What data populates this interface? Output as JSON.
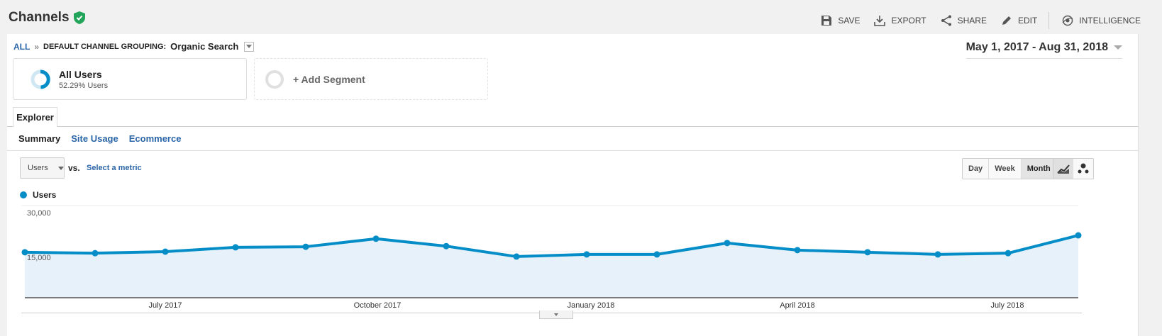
{
  "header": {
    "title": "Channels",
    "verified_icon": "shield-check-icon",
    "actions": [
      {
        "label": "SAVE",
        "icon": "save-icon"
      },
      {
        "label": "EXPORT",
        "icon": "download-icon"
      },
      {
        "label": "SHARE",
        "icon": "share-icon"
      },
      {
        "label": "EDIT",
        "icon": "pencil-icon"
      },
      {
        "label": "INTELLIGENCE",
        "icon": "intelligence-icon"
      }
    ]
  },
  "breadcrumb": {
    "root": "ALL",
    "separator": "»",
    "dimension": "DEFAULT CHANNEL GROUPING:",
    "value": "Organic Search"
  },
  "date_range": "May 1, 2017 - Aug 31, 2018",
  "segments": [
    {
      "name": "All Users",
      "subtitle": "52.29% Users"
    },
    {
      "name": "+ Add Segment"
    }
  ],
  "tabs": {
    "main": "Explorer",
    "sub": [
      "Summary",
      "Site Usage",
      "Ecommerce"
    ],
    "active_sub": "Summary"
  },
  "metric_controls": {
    "primary_metric": "Users",
    "vs_label": "vs.",
    "secondary_placeholder": "Select a metric",
    "periods": [
      "Day",
      "Week",
      "Month"
    ],
    "active_period": "Month",
    "chart_types": [
      "line-chart-icon",
      "motion-chart-icon"
    ]
  },
  "colors": {
    "accent": "#058dc7",
    "area_fill": "#e6f1f9",
    "link": "#2a65a8",
    "verified": "#22a55a"
  },
  "chart_data": {
    "type": "area",
    "title": "",
    "legend": [
      "Users"
    ],
    "x": [
      "May 2017",
      "Jun 2017",
      "Jul 2017",
      "Aug 2017",
      "Sep 2017",
      "Oct 2017",
      "Nov 2017",
      "Dec 2017",
      "Jan 2018",
      "Feb 2018",
      "Mar 2018",
      "Apr 2018",
      "May 2018",
      "Jun 2018",
      "Jul 2018",
      "Aug 2018"
    ],
    "series": [
      {
        "name": "Users",
        "values": [
          14800,
          14500,
          15000,
          16400,
          16600,
          19200,
          16800,
          13400,
          14100,
          14100,
          17800,
          15500,
          14800,
          14100,
          14500,
          20300
        ]
      }
    ],
    "xtick_labels": [
      "July 2017",
      "October 2017",
      "January 2018",
      "April 2018",
      "July 2018"
    ],
    "ytick_labels": [
      "30,000",
      "15,000"
    ],
    "yticks": [
      30000,
      15000
    ],
    "ylim": [
      0,
      30000
    ],
    "xlabel": "",
    "ylabel": "",
    "grid": true,
    "legend_position": "top-left"
  }
}
